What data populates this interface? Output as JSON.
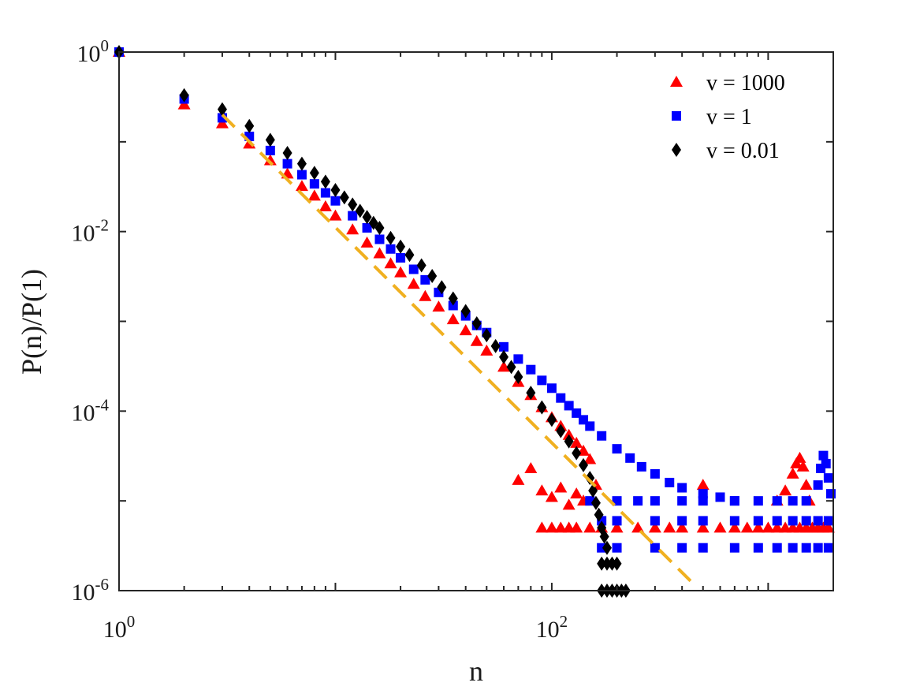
{
  "chart_data": {
    "type": "scatter",
    "title": "",
    "xlabel": "n",
    "ylabel": "P(n)/P(1)",
    "xscale": "log",
    "yscale": "log",
    "xlim": [
      1,
      2000
    ],
    "ylim": [
      1e-06,
      1
    ],
    "x_ticks": [
      {
        "value": 1,
        "base": "10",
        "exp": "0"
      },
      {
        "value": 100,
        "base": "10",
        "exp": "2"
      }
    ],
    "y_ticks": [
      {
        "value": 1,
        "base": "10",
        "exp": "0"
      },
      {
        "value": 0.01,
        "base": "10",
        "exp": "-2"
      },
      {
        "value": 0.0001,
        "base": "10",
        "exp": "-4"
      },
      {
        "value": 1e-06,
        "base": "10",
        "exp": "-6"
      }
    ],
    "legend_position": "top-right",
    "series": [
      {
        "name": "v = 1000",
        "label": "v = 1000",
        "marker": "triangle",
        "color": "#ff0000",
        "points": [
          [
            1,
            1
          ],
          [
            2,
            0.26
          ],
          [
            3,
            0.16
          ],
          [
            4,
            0.095
          ],
          [
            5,
            0.062
          ],
          [
            6,
            0.044
          ],
          [
            7,
            0.032
          ],
          [
            8,
            0.025
          ],
          [
            9,
            0.019
          ],
          [
            10,
            0.015
          ],
          [
            12,
            0.0105
          ],
          [
            14,
            0.0075
          ],
          [
            16,
            0.0057
          ],
          [
            18,
            0.0044
          ],
          [
            20,
            0.0035
          ],
          [
            23,
            0.0026
          ],
          [
            26,
            0.0019
          ],
          [
            30,
            0.00145
          ],
          [
            35,
            0.00105
          ],
          [
            40,
            0.00079
          ],
          [
            45,
            0.0006
          ],
          [
            50,
            0.00047
          ],
          [
            60,
            0.00031
          ],
          [
            70,
            0.00021
          ],
          [
            80,
            0.00015
          ],
          [
            90,
            0.00011
          ],
          [
            100,
            8.5e-05
          ],
          [
            110,
            6.8e-05
          ],
          [
            120,
            5.4e-05
          ],
          [
            130,
            4.4e-05
          ],
          [
            140,
            3.6e-05
          ],
          [
            150,
            2.9e-05
          ],
          [
            70,
            1.7e-05
          ],
          [
            80,
            2.3e-05
          ],
          [
            90,
            1.3e-05
          ],
          [
            100,
            1.1e-05
          ],
          [
            110,
            1.4e-05
          ],
          [
            120,
            9e-06
          ],
          [
            130,
            1.2e-05
          ],
          [
            140,
            1e-05
          ],
          [
            160,
            1.5e-05
          ],
          [
            90,
            5e-06
          ],
          [
            100,
            5e-06
          ],
          [
            110,
            5e-06
          ],
          [
            120,
            5e-06
          ],
          [
            130,
            5e-06
          ],
          [
            150,
            5e-06
          ],
          [
            170,
            5e-06
          ],
          [
            200,
            5e-06
          ],
          [
            250,
            5e-06
          ],
          [
            300,
            5e-06
          ],
          [
            350,
            5e-06
          ],
          [
            400,
            5e-06
          ],
          [
            500,
            5e-06
          ],
          [
            600,
            5e-06
          ],
          [
            700,
            5e-06
          ],
          [
            800,
            5e-06
          ],
          [
            900,
            5e-06
          ],
          [
            1000,
            5e-06
          ],
          [
            1100,
            5e-06
          ],
          [
            1200,
            5e-06
          ],
          [
            1300,
            5e-06
          ],
          [
            1400,
            5e-06
          ],
          [
            1500,
            5e-06
          ],
          [
            1600,
            5e-06
          ],
          [
            1700,
            5e-06
          ],
          [
            1800,
            5e-06
          ],
          [
            1900,
            5e-06
          ],
          [
            500,
            1.5e-05
          ],
          [
            1100,
            1e-05
          ],
          [
            1200,
            1.3e-05
          ],
          [
            1300,
            2e-05
          ],
          [
            1350,
            2.6e-05
          ],
          [
            1400,
            3e-05
          ],
          [
            1450,
            2.4e-05
          ],
          [
            1500,
            1.5e-05
          ],
          [
            1550,
            1e-05
          ]
        ]
      },
      {
        "name": "v = 1",
        "label": "v = 1",
        "marker": "square",
        "color": "#0000ff",
        "points": [
          [
            1,
            1
          ],
          [
            2,
            0.3
          ],
          [
            3,
            0.185
          ],
          [
            4,
            0.115
          ],
          [
            5,
            0.08
          ],
          [
            6,
            0.057
          ],
          [
            7,
            0.043
          ],
          [
            8,
            0.034
          ],
          [
            9,
            0.027
          ],
          [
            10,
            0.022
          ],
          [
            12,
            0.015
          ],
          [
            14,
            0.011
          ],
          [
            16,
            0.0082
          ],
          [
            18,
            0.0064
          ],
          [
            20,
            0.0051
          ],
          [
            23,
            0.0038
          ],
          [
            26,
            0.0029
          ],
          [
            30,
            0.0021
          ],
          [
            35,
            0.0015
          ],
          [
            40,
            0.00115
          ],
          [
            45,
            0.0009
          ],
          [
            50,
            0.00075
          ],
          [
            60,
            0.00052
          ],
          [
            70,
            0.00038
          ],
          [
            80,
            0.00029
          ],
          [
            90,
            0.00022
          ],
          [
            100,
            0.00018
          ],
          [
            110,
            0.00014
          ],
          [
            120,
            0.000115
          ],
          [
            130,
            9.5e-05
          ],
          [
            140,
            8e-05
          ],
          [
            150,
            6.8e-05
          ],
          [
            170,
            5.3e-05
          ],
          [
            200,
            3.8e-05
          ],
          [
            230,
            3e-05
          ],
          [
            260,
            2.4e-05
          ],
          [
            300,
            2e-05
          ],
          [
            350,
            1.6e-05
          ],
          [
            400,
            1.4e-05
          ],
          [
            500,
            1.2e-05
          ],
          [
            600,
            1.1e-05
          ],
          [
            700,
            1e-05
          ],
          [
            150,
            1e-05
          ],
          [
            200,
            1e-05
          ],
          [
            250,
            1e-05
          ],
          [
            300,
            1e-05
          ],
          [
            400,
            1e-05
          ],
          [
            500,
            1e-05
          ],
          [
            700,
            1e-05
          ],
          [
            900,
            1e-05
          ],
          [
            1100,
            1e-05
          ],
          [
            1300,
            1e-05
          ],
          [
            1500,
            1e-05
          ],
          [
            170,
            6e-06
          ],
          [
            200,
            6e-06
          ],
          [
            300,
            6e-06
          ],
          [
            400,
            6e-06
          ],
          [
            500,
            6e-06
          ],
          [
            700,
            6e-06
          ],
          [
            900,
            6e-06
          ],
          [
            1100,
            6e-06
          ],
          [
            1300,
            6e-06
          ],
          [
            1500,
            6e-06
          ],
          [
            1700,
            6e-06
          ],
          [
            1900,
            6e-06
          ],
          [
            170,
            3e-06
          ],
          [
            200,
            3e-06
          ],
          [
            300,
            3e-06
          ],
          [
            400,
            3e-06
          ],
          [
            500,
            3e-06
          ],
          [
            700,
            3e-06
          ],
          [
            900,
            3e-06
          ],
          [
            1100,
            3e-06
          ],
          [
            1300,
            3e-06
          ],
          [
            1500,
            3e-06
          ],
          [
            1700,
            3e-06
          ],
          [
            1900,
            3e-06
          ],
          [
            1700,
            1.5e-05
          ],
          [
            1750,
            2.3e-05
          ],
          [
            1800,
            3.2e-05
          ],
          [
            1850,
            2.6e-05
          ],
          [
            1900,
            1.8e-05
          ],
          [
            1950,
            1.2e-05
          ]
        ]
      },
      {
        "name": "v = 0.01",
        "label": "v = 0.01",
        "marker": "diamond",
        "color": "#000000",
        "points": [
          [
            1,
            1
          ],
          [
            2,
            0.33
          ],
          [
            3,
            0.23
          ],
          [
            4,
            0.15
          ],
          [
            5,
            0.105
          ],
          [
            6,
            0.075
          ],
          [
            7,
            0.057
          ],
          [
            8,
            0.045
          ],
          [
            9,
            0.036
          ],
          [
            10,
            0.029
          ],
          [
            11,
            0.024
          ],
          [
            12,
            0.02
          ],
          [
            13,
            0.017
          ],
          [
            14,
            0.0145
          ],
          [
            15,
            0.0125
          ],
          [
            16,
            0.011
          ],
          [
            18,
            0.0085
          ],
          [
            20,
            0.0068
          ],
          [
            22,
            0.0055
          ],
          [
            25,
            0.0042
          ],
          [
            28,
            0.0032
          ],
          [
            31,
            0.0024
          ],
          [
            35,
            0.0018
          ],
          [
            40,
            0.0013
          ],
          [
            45,
            0.00095
          ],
          [
            50,
            0.0007
          ],
          [
            55,
            0.00053
          ],
          [
            60,
            0.0004
          ],
          [
            65,
            0.00031
          ],
          [
            70,
            0.00024
          ],
          [
            80,
            0.00016
          ],
          [
            90,
            0.00011
          ],
          [
            100,
            8e-05
          ],
          [
            110,
            6e-05
          ],
          [
            120,
            4.6e-05
          ],
          [
            130,
            3.4e-05
          ],
          [
            140,
            2.5e-05
          ],
          [
            150,
            1.8e-05
          ],
          [
            155,
            1.3e-05
          ],
          [
            160,
            9.5e-06
          ],
          [
            165,
            7e-06
          ],
          [
            170,
            5e-06
          ],
          [
            175,
            4e-06
          ],
          [
            180,
            3e-06
          ],
          [
            170,
            2e-06
          ],
          [
            180,
            2e-06
          ],
          [
            190,
            2e-06
          ],
          [
            200,
            2e-06
          ],
          [
            170,
            1e-06
          ],
          [
            180,
            1e-06
          ],
          [
            190,
            1e-06
          ],
          [
            200,
            1e-06
          ],
          [
            210,
            1e-06
          ],
          [
            220,
            1e-06
          ]
        ]
      }
    ],
    "fit_line": {
      "name": "power-law fit",
      "style": "dashed",
      "color": "#f0b020",
      "points": [
        [
          3,
          0.2
        ],
        [
          450,
          1.2e-06
        ]
      ]
    }
  }
}
